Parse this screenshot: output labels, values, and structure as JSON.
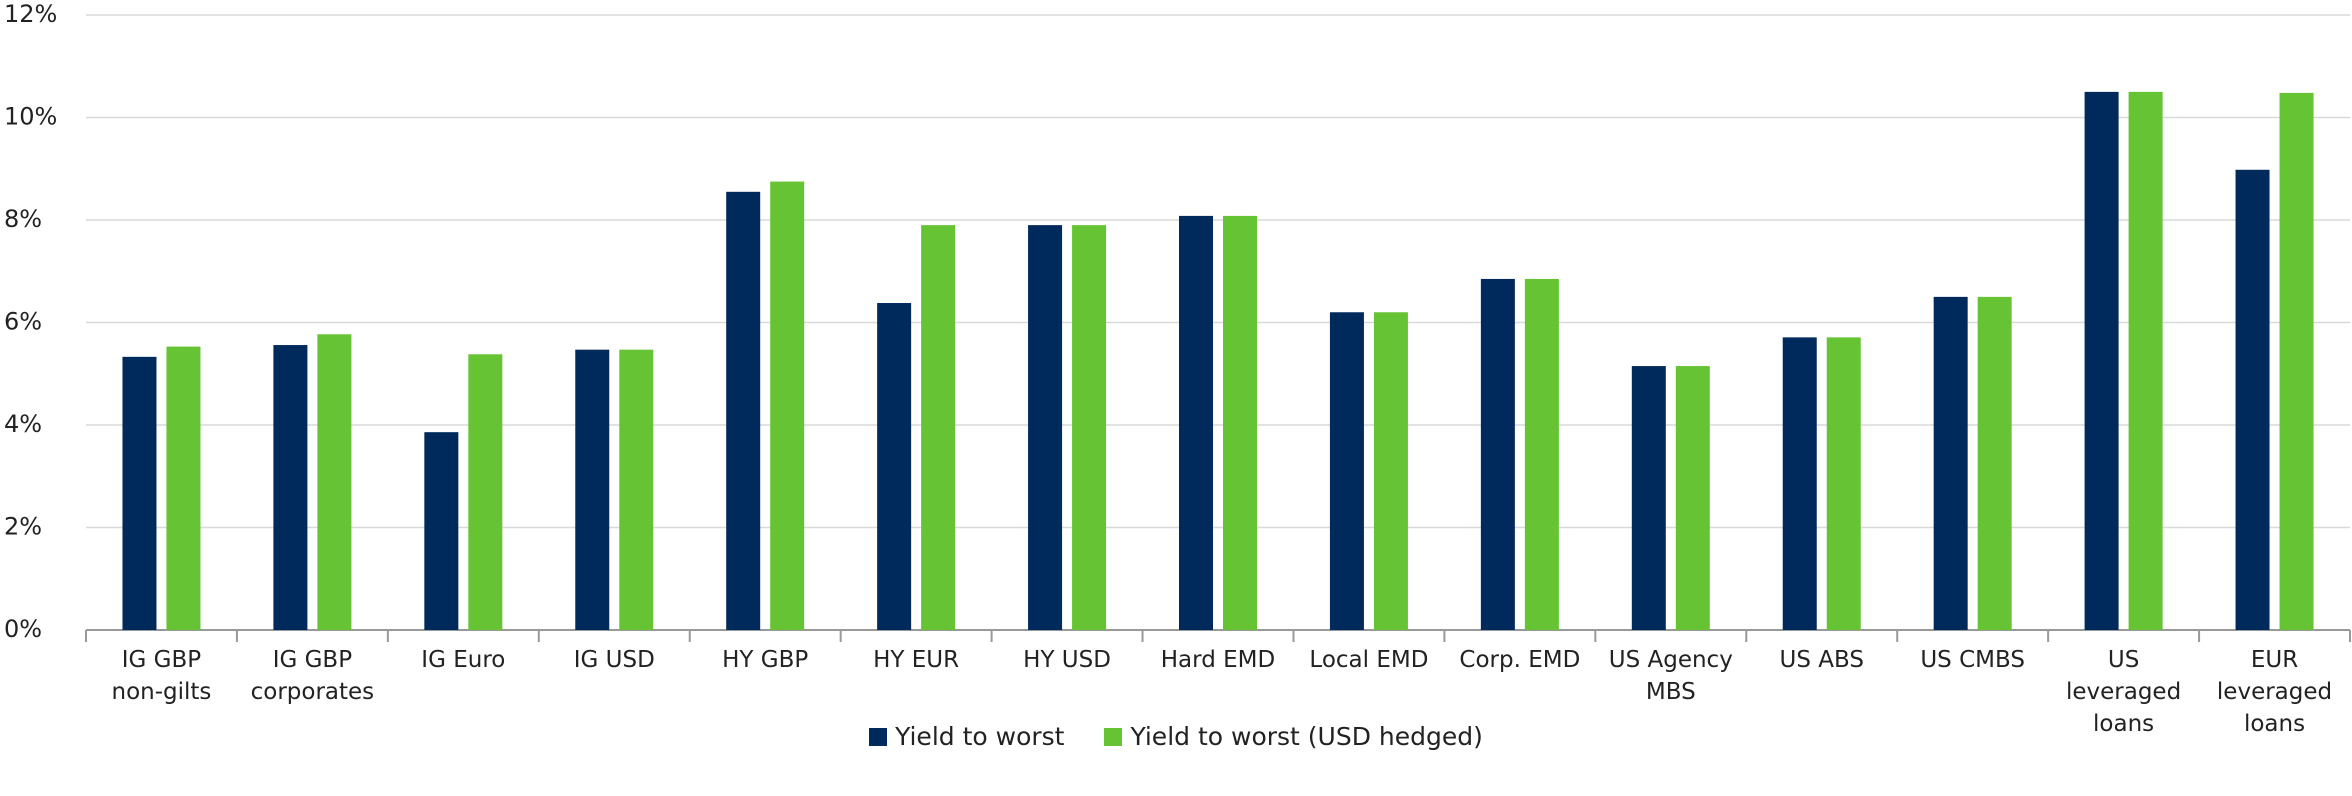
{
  "chart_data": {
    "type": "bar",
    "categories": [
      "IG GBP\nnon-gilts",
      "IG GBP\ncorporates",
      "IG Euro",
      "IG USD",
      "HY GBP",
      "HY EUR",
      "HY USD",
      "Hard EMD",
      "Local EMD",
      "Corp. EMD",
      "US Agency\nMBS",
      "US ABS",
      "US CMBS",
      "US\nleveraged\nloans",
      "EUR\nleveraged\nloans"
    ],
    "series": [
      {
        "name": "Yield to worst",
        "color": "#002a5c",
        "values": [
          5.33,
          5.56,
          3.86,
          5.47,
          8.55,
          6.38,
          7.9,
          8.08,
          6.2,
          6.85,
          5.15,
          5.71,
          6.5,
          10.5,
          8.98
        ]
      },
      {
        "name": "Yield to worst (USD hedged)",
        "color": "#66c434",
        "values": [
          5.53,
          5.77,
          5.38,
          5.47,
          8.75,
          7.9,
          7.9,
          8.08,
          6.2,
          6.85,
          5.15,
          5.71,
          6.5,
          10.5,
          10.48
        ]
      }
    ],
    "ylim": [
      0,
      12
    ],
    "yticks": [
      {
        "value": 0,
        "label": "0%"
      },
      {
        "value": 2,
        "label": "2%"
      },
      {
        "value": 4,
        "label": "4%"
      },
      {
        "value": 6,
        "label": "6%"
      },
      {
        "value": 8,
        "label": "8%"
      },
      {
        "value": 10,
        "label": "10%"
      },
      {
        "value": 12,
        "label": "12%"
      }
    ],
    "grid": true,
    "legend": "bottom"
  }
}
